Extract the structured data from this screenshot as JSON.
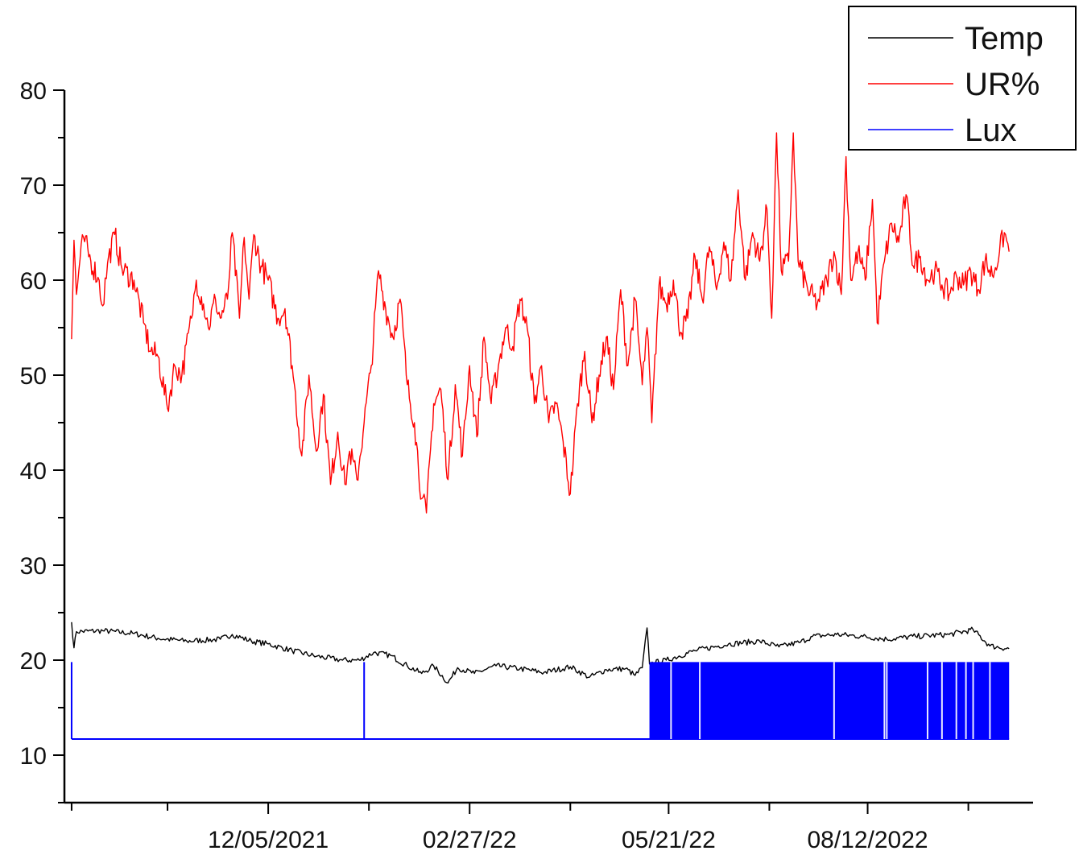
{
  "chart_data": {
    "type": "line",
    "title": "",
    "xlabel": "",
    "ylabel": "",
    "ylim": [
      5,
      80
    ],
    "y_ticks": [
      10,
      20,
      30,
      40,
      50,
      60,
      70,
      80
    ],
    "x_start_date": "2021-09-14",
    "x_end_date": "2022-10-10",
    "x_range": [
      "2021-09-11",
      "2022-10-20"
    ],
    "x_ticks": [
      "2021-09-14",
      "2021-10-24",
      "2021-12-05",
      "2022-01-16",
      "2022-02-27",
      "2022-04-10",
      "2022-05-21",
      "2022-07-02",
      "2022-08-12",
      "2022-09-23"
    ],
    "x_tick_labels": [
      {
        "date": "2021-12-05",
        "label": "12/05/2021"
      },
      {
        "date": "2022-02-27",
        "label": "02/27/22"
      },
      {
        "date": "2022-05-21",
        "label": "05/21/22"
      },
      {
        "date": "2022-08-12",
        "label": "08/12/2022"
      }
    ],
    "legend_position": "top-right",
    "grid": false,
    "series": [
      {
        "name": "Temp",
        "color": "#000000",
        "points": [
          [
            "2021-09-14",
            24.0
          ],
          [
            "2021-09-15",
            21.3
          ],
          [
            "2021-09-16",
            23.0
          ],
          [
            "2021-09-27",
            23.1
          ],
          [
            "2021-10-10",
            22.8
          ],
          [
            "2021-10-20",
            22.3
          ],
          [
            "2021-11-01",
            22.0
          ],
          [
            "2021-11-15",
            22.2
          ],
          [
            "2021-11-20",
            22.7
          ],
          [
            "2021-11-28",
            22.0
          ],
          [
            "2021-12-05",
            21.7
          ],
          [
            "2021-12-15",
            21.0
          ],
          [
            "2021-12-25",
            20.4
          ],
          [
            "2022-01-05",
            20.0
          ],
          [
            "2022-01-12",
            20.0
          ],
          [
            "2022-01-18",
            20.8
          ],
          [
            "2022-01-25",
            20.5
          ],
          [
            "2022-02-01",
            19.4
          ],
          [
            "2022-02-07",
            18.6
          ],
          [
            "2022-02-12",
            19.4
          ],
          [
            "2022-02-18",
            17.6
          ],
          [
            "2022-02-22",
            19.2
          ],
          [
            "2022-03-01",
            18.6
          ],
          [
            "2022-03-10",
            19.4
          ],
          [
            "2022-03-20",
            19.1
          ],
          [
            "2022-03-30",
            18.7
          ],
          [
            "2022-04-10",
            19.3
          ],
          [
            "2022-04-18",
            18.2
          ],
          [
            "2022-04-25",
            19.0
          ],
          [
            "2022-05-03",
            19.1
          ],
          [
            "2022-05-07",
            18.4
          ],
          [
            "2022-05-10",
            19.2
          ],
          [
            "2022-05-12",
            23.4
          ],
          [
            "2022-05-13",
            19.6
          ],
          [
            "2022-05-20",
            20.0
          ],
          [
            "2022-06-01",
            21.0
          ],
          [
            "2022-06-15",
            21.7
          ],
          [
            "2022-06-28",
            22.0
          ],
          [
            "2022-07-06",
            21.4
          ],
          [
            "2022-07-15",
            21.9
          ],
          [
            "2022-07-20",
            22.5
          ],
          [
            "2022-07-30",
            22.7
          ],
          [
            "2022-08-10",
            22.5
          ],
          [
            "2022-08-20",
            22.2
          ],
          [
            "2022-09-01",
            22.5
          ],
          [
            "2022-09-15",
            22.7
          ],
          [
            "2022-09-25",
            23.2
          ],
          [
            "2022-10-02",
            21.5
          ],
          [
            "2022-10-10",
            21.2
          ]
        ]
      },
      {
        "name": "UR%",
        "color": "#ff0000",
        "points": [
          [
            "2021-09-14",
            53.8
          ],
          [
            "2021-09-15",
            64.2
          ],
          [
            "2021-09-16",
            58.5
          ],
          [
            "2021-09-17",
            61.0
          ],
          [
            "2021-09-19",
            64.5
          ],
          [
            "2021-09-22",
            62.0
          ],
          [
            "2021-09-25",
            60.3
          ],
          [
            "2021-09-27",
            57.3
          ],
          [
            "2021-09-29",
            61.8
          ],
          [
            "2021-10-02",
            64.8
          ],
          [
            "2021-10-05",
            61.2
          ],
          [
            "2021-10-10",
            60.0
          ],
          [
            "2021-10-14",
            55.5
          ],
          [
            "2021-10-17",
            52.5
          ],
          [
            "2021-10-20",
            52.0
          ],
          [
            "2021-10-24",
            46.5
          ],
          [
            "2021-10-27",
            51.0
          ],
          [
            "2021-10-30",
            50.0
          ],
          [
            "2021-11-03",
            56.0
          ],
          [
            "2021-11-05",
            60.0
          ],
          [
            "2021-11-08",
            57.5
          ],
          [
            "2021-11-10",
            55.0
          ],
          [
            "2021-11-13",
            58.0
          ],
          [
            "2021-11-15",
            56.0
          ],
          [
            "2021-11-18",
            58.0
          ],
          [
            "2021-11-20",
            65.0
          ],
          [
            "2021-11-23",
            56.0
          ],
          [
            "2021-11-25",
            64.5
          ],
          [
            "2021-11-27",
            58.0
          ],
          [
            "2021-11-29",
            64.8
          ],
          [
            "2021-12-02",
            61.5
          ],
          [
            "2021-12-05",
            60.0
          ],
          [
            "2021-12-09",
            56.0
          ],
          [
            "2021-12-12",
            57.0
          ],
          [
            "2021-12-15",
            51.0
          ],
          [
            "2021-12-19",
            41.5
          ],
          [
            "2021-12-22",
            50.0
          ],
          [
            "2021-12-25",
            42.0
          ],
          [
            "2021-12-28",
            48.0
          ],
          [
            "2021-12-31",
            38.5
          ],
          [
            "2022-01-03",
            44.0
          ],
          [
            "2022-01-06",
            38.5
          ],
          [
            "2022-01-08",
            42.0
          ],
          [
            "2022-01-11",
            39.0
          ],
          [
            "2022-01-14",
            45.0
          ],
          [
            "2022-01-17",
            51.0
          ],
          [
            "2022-01-20",
            61.0
          ],
          [
            "2022-01-23",
            57.0
          ],
          [
            "2022-01-26",
            54.0
          ],
          [
            "2022-01-29",
            58.0
          ],
          [
            "2022-02-01",
            49.0
          ],
          [
            "2022-02-04",
            45.0
          ],
          [
            "2022-02-07",
            37.0
          ],
          [
            "2022-02-09",
            35.5
          ],
          [
            "2022-02-12",
            47.0
          ],
          [
            "2022-02-15",
            48.5
          ],
          [
            "2022-02-18",
            39.0
          ],
          [
            "2022-02-21",
            49.0
          ],
          [
            "2022-02-24",
            41.5
          ],
          [
            "2022-02-27",
            51.0
          ],
          [
            "2022-03-02",
            43.5
          ],
          [
            "2022-03-05",
            54.0
          ],
          [
            "2022-03-08",
            47.0
          ],
          [
            "2022-03-11",
            51.0
          ],
          [
            "2022-03-14",
            55.0
          ],
          [
            "2022-03-17",
            53.0
          ],
          [
            "2022-03-20",
            58.0
          ],
          [
            "2022-03-23",
            55.0
          ],
          [
            "2022-03-26",
            47.0
          ],
          [
            "2022-03-29",
            51.0
          ],
          [
            "2022-04-01",
            45.0
          ],
          [
            "2022-04-04",
            47.0
          ],
          [
            "2022-04-07",
            43.0
          ],
          [
            "2022-04-10",
            37.5
          ],
          [
            "2022-04-13",
            47.0
          ],
          [
            "2022-04-16",
            52.5
          ],
          [
            "2022-04-19",
            45.0
          ],
          [
            "2022-04-22",
            50.0
          ],
          [
            "2022-04-25",
            54.0
          ],
          [
            "2022-04-28",
            48.5
          ],
          [
            "2022-05-01",
            59.0
          ],
          [
            "2022-05-04",
            51.0
          ],
          [
            "2022-05-07",
            58.0
          ],
          [
            "2022-05-10",
            49.0
          ],
          [
            "2022-05-12",
            55.0
          ],
          [
            "2022-05-14",
            45.0
          ],
          [
            "2022-05-17",
            59.5
          ],
          [
            "2022-05-20",
            57.5
          ],
          [
            "2022-05-23",
            60.0
          ],
          [
            "2022-05-26",
            54.5
          ],
          [
            "2022-05-29",
            56.0
          ],
          [
            "2022-06-01",
            62.5
          ],
          [
            "2022-06-04",
            58.0
          ],
          [
            "2022-06-07",
            63.5
          ],
          [
            "2022-06-10",
            59.0
          ],
          [
            "2022-06-13",
            64.0
          ],
          [
            "2022-06-16",
            60.0
          ],
          [
            "2022-06-19",
            69.5
          ],
          [
            "2022-06-22",
            60.0
          ],
          [
            "2022-06-25",
            65.0
          ],
          [
            "2022-06-28",
            62.0
          ],
          [
            "2022-07-01",
            67.5
          ],
          [
            "2022-07-03",
            56.0
          ],
          [
            "2022-07-05",
            75.5
          ],
          [
            "2022-07-07",
            61.0
          ],
          [
            "2022-07-10",
            62.0
          ],
          [
            "2022-07-12",
            75.5
          ],
          [
            "2022-07-14",
            62.0
          ],
          [
            "2022-07-18",
            59.0
          ],
          [
            "2022-07-22",
            57.5
          ],
          [
            "2022-07-26",
            60.0
          ],
          [
            "2022-07-29",
            63.0
          ],
          [
            "2022-08-01",
            58.5
          ],
          [
            "2022-08-03",
            73.0
          ],
          [
            "2022-08-05",
            60.0
          ],
          [
            "2022-08-08",
            63.0
          ],
          [
            "2022-08-11",
            60.0
          ],
          [
            "2022-08-14",
            68.5
          ],
          [
            "2022-08-16",
            55.5
          ],
          [
            "2022-08-19",
            62.0
          ],
          [
            "2022-08-22",
            66.0
          ],
          [
            "2022-08-25",
            64.0
          ],
          [
            "2022-08-28",
            69.0
          ],
          [
            "2022-08-31",
            61.5
          ],
          [
            "2022-09-03",
            62.5
          ],
          [
            "2022-09-06",
            60.0
          ],
          [
            "2022-09-09",
            61.0
          ],
          [
            "2022-09-12",
            59.5
          ],
          [
            "2022-09-15",
            58.5
          ],
          [
            "2022-09-18",
            60.5
          ],
          [
            "2022-09-21",
            59.5
          ],
          [
            "2022-09-24",
            61.0
          ],
          [
            "2022-09-27",
            59.0
          ],
          [
            "2022-09-30",
            62.0
          ],
          [
            "2022-10-03",
            60.5
          ],
          [
            "2022-10-06",
            63.0
          ],
          [
            "2022-10-08",
            65.0
          ],
          [
            "2022-10-10",
            63.0
          ]
        ]
      },
      {
        "name": "Lux",
        "color": "#0000ff",
        "baseline": 11.7,
        "spike_level": 19.8,
        "single_spikes": [
          "2021-09-14",
          "2022-01-14"
        ],
        "dense_band": [
          "2022-05-13",
          "2022-10-10"
        ],
        "band_gaps": [
          "2022-05-22",
          "2022-06-03",
          "2022-07-29",
          "2022-08-19",
          "2022-08-20",
          "2022-09-06",
          "2022-09-12",
          "2022-09-18",
          "2022-09-22",
          "2022-09-25",
          "2022-10-02"
        ]
      }
    ]
  }
}
